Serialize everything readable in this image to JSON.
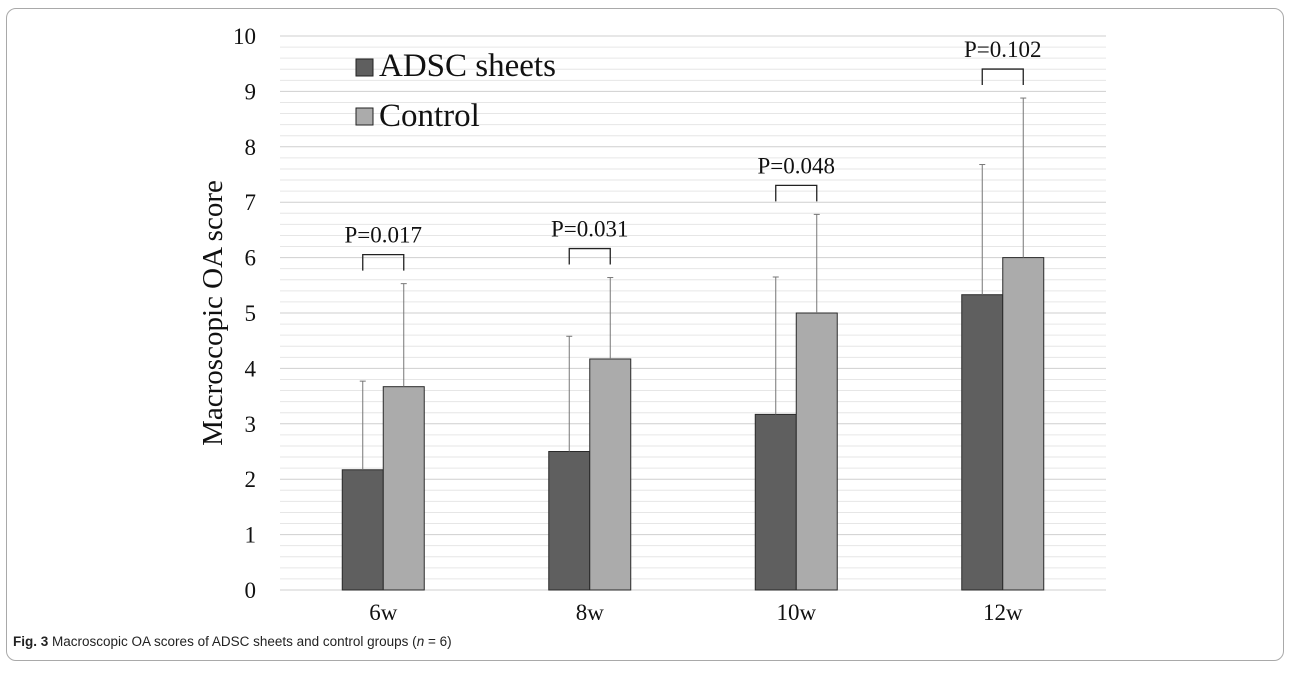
{
  "chart_data": {
    "type": "bar",
    "categories": [
      "6w",
      "8w",
      "10w",
      "12w"
    ],
    "series": [
      {
        "name": "ADSC sheets",
        "color": "#5f5f5f",
        "values": [
          2.17,
          2.5,
          3.17,
          5.33
        ],
        "error": [
          1.6,
          2.08,
          2.48,
          2.35
        ]
      },
      {
        "name": "Control",
        "color": "#ababab",
        "values": [
          3.67,
          4.17,
          5.0,
          6.0
        ],
        "error": [
          1.86,
          1.47,
          1.78,
          2.88
        ]
      }
    ],
    "ylabel": "Macroscopic OA score",
    "xlabel": "",
    "ylim": [
      0,
      10
    ],
    "yticks": [
      "0",
      "1",
      "2",
      "3",
      "4",
      "5",
      "6",
      "7",
      "8",
      "9",
      "10"
    ],
    "minor_grid": true,
    "legend_position": "top-left",
    "annotations": [
      "P=0.017",
      "P=0.031",
      "P=0.048",
      "P=0.102"
    ]
  },
  "caption": {
    "label": "Fig. 3",
    "text_before": " Macroscopic OA scores of ADSC sheets and control groups (",
    "n_symbol": "n",
    "text_after": " = 6)"
  }
}
